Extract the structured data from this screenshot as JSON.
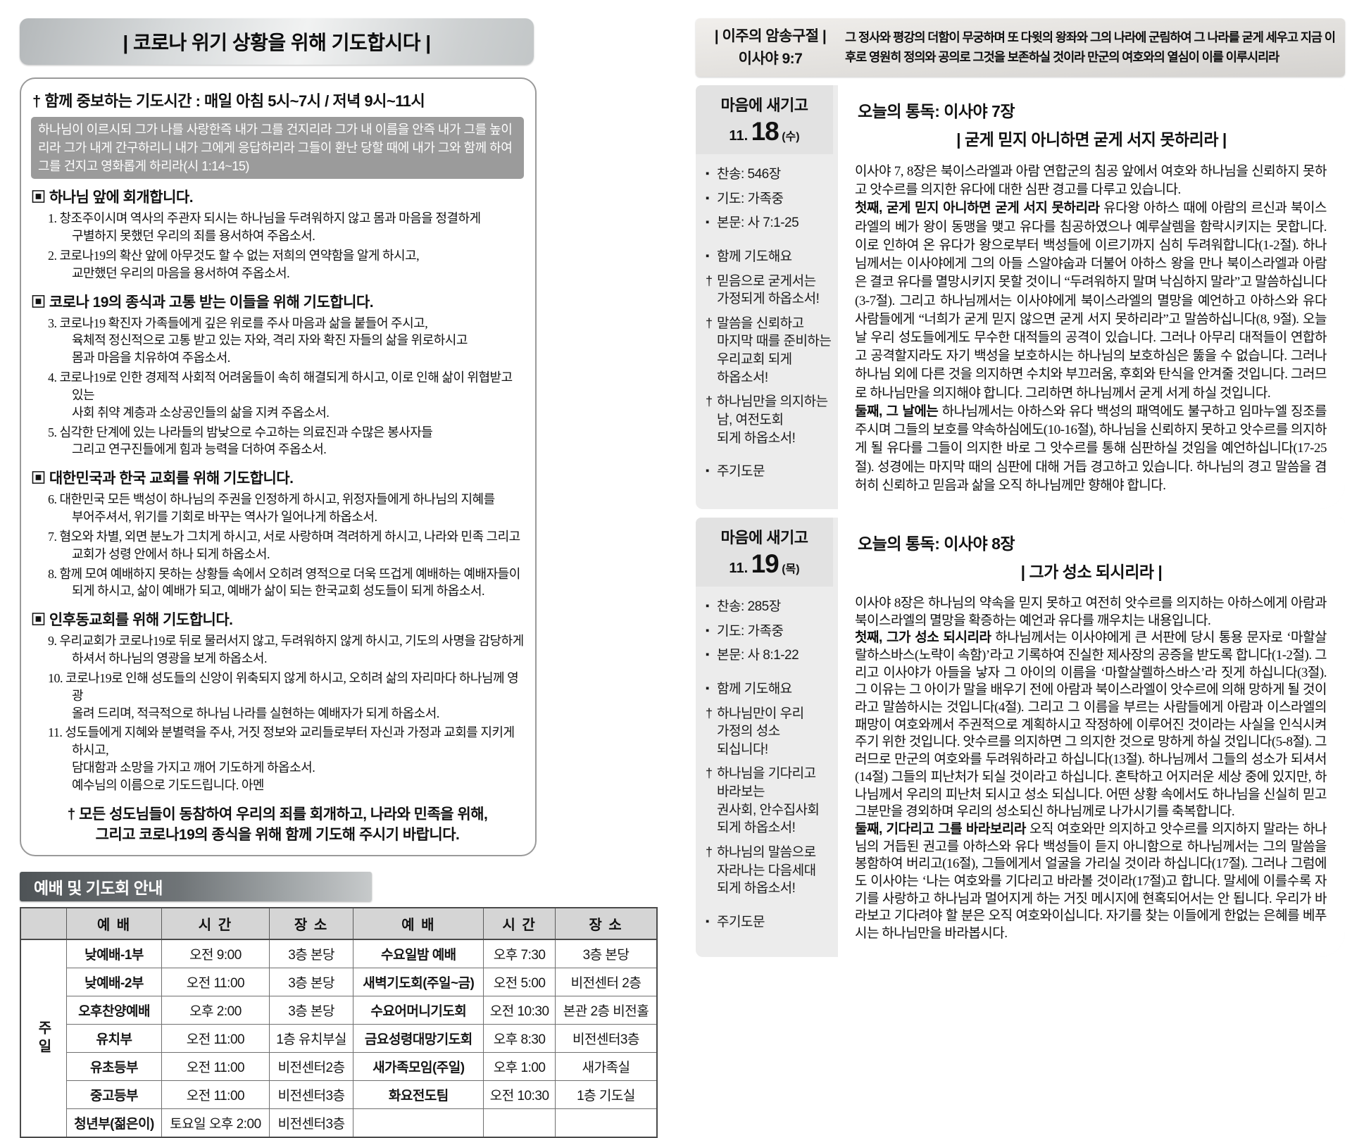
{
  "left": {
    "title": "| 코로나 위기 상황을 위해 기도합시다 |",
    "prayer_box": {
      "heading": "† 함께 중보하는 기도시간 : 매일 아침 5시~7시 / 저녁 9시~11시",
      "verse": "하나님이 이르시되 그가 나를 사랑한즉 내가 그를 건지리라 그가 내 이름을 안즉 내가 그를 높이리라 그가 내게 간구하리니 내가 그에게 응답하리라 그들이 환난 당할 때에 내가 그와 함께 하여 그를 건지고 영화롭게 하리라(시 1:14~15)",
      "sections": [
        {
          "title": "▣ 하나님 앞에 회개합니다.",
          "items": [
            "1. 창조주이시며 역사의 주관자 되시는 하나님을 두려워하지 않고 몸과 마음을 정결하게\n구별하지 못했던 우리의 죄를 용서하여 주옵소서.",
            "2. 코로나19의 확산 앞에 아무것도 할 수 없는 저희의 연약함을 알게 하시고,\n교만했던 우리의 마음을 용서하여 주옵소서."
          ]
        },
        {
          "title": "▣ 코로나 19의 종식과 고통 받는 이들을 위해 기도합니다.",
          "items": [
            "3. 코로나19 확진자 가족들에게 깊은 위로를 주사 마음과 삶을 붙들어 주시고,\n육체적 정신적으로 고통 받고 있는 자와, 격리 자와 확진 자들의 삶을 위로하시고\n몸과 마음을 치유하여 주옵소서.",
            "4. 코로나19로 인한 경제적 사회적 어려움들이 속히 해결되게 하시고, 이로 인해 삶이 위협받고 있는\n사회 취약 계층과 소상공인들의 삶을 지켜 주옵소서.",
            "5. 심각한 단계에 있는 나라들의 밤낮으로 수고하는 의료진과 수많은 봉사자들\n그리고 연구진들에게 힘과 능력을 더하여 주옵소서."
          ]
        },
        {
          "title": "▣ 대한민국과 한국 교회를 위해 기도합니다.",
          "items": [
            "6. 대한민국 모든 백성이 하나님의 주권을 인정하게 하시고, 위정자들에게 하나님의 지혜를\n부어주셔서, 위기를 기회로 바꾸는 역사가 일어나게 하옵소서.",
            "7. 혐오와 차별, 외면 분노가 그치게 하시고, 서로 사랑하며 격려하게 하시고, 나라와 민족 그리고\n교회가 성령 안에서 하나 되게 하옵소서.",
            "8. 함께 모여 예배하지 못하는 상황들 속에서 오히려 영적으로 더욱 뜨겁게 예배하는 예배자들이\n되게 하시고, 삶이 예배가 되고, 예배가 삶이 되는 한국교회 성도들이 되게 하옵소서."
          ]
        },
        {
          "title": "▣ 인후동교회를 위해 기도합니다.",
          "items": [
            "9. 우리교회가 코로나19로 뒤로 물러서지 않고, 두려워하지 않게 하시고, 기도의 사명을 감당하게\n하셔서 하나님의 영광을 보게 하옵소서.",
            "10. 코로나19로 인해 성도들의 신앙이 위축되지 않게 하시고, 오히려 삶의 자리마다 하나님께 영광\n올려 드리며, 적극적으로 하나님 나라를 실현하는 예배자가 되게 하옵소서.",
            "11. 성도들에게 지혜와 분별력을 주사, 거짓 정보와 교리들로부터 자신과 가정과 교회를 지키게 하시고,\n담대함과 소망을 가지고 깨어 기도하게 하옵소서.\n예수님의 이름으로 기도드립니다. 아멘"
          ]
        }
      ],
      "footer": "† 모든 성도님들이 동참하여 우리의 죄를 회개하고, 나라와 민족을 위해,\n그리고 코로나19의 종식을 위해 함께 기도해 주시기 바랍니다."
    },
    "schedule": {
      "banner": "예배 및 기도회 안내",
      "headers": [
        "예 배",
        "시 간",
        "장 소",
        "예 배",
        "시 간",
        "장 소"
      ],
      "row_label": "주일",
      "rows": [
        [
          "낮예배-1부",
          "오전 9:00",
          "3층 본당",
          "수요일밤 예배",
          "오후 7:30",
          "3층 본당"
        ],
        [
          "낮예배-2부",
          "오전 11:00",
          "3층 본당",
          "새벽기도회(주일~금)",
          "오전 5:00",
          "비전센터 2층"
        ],
        [
          "오후찬양예배",
          "오후 2:00",
          "3층 본당",
          "수요어머니기도회",
          "오전 10:30",
          "본관 2층 비전홀"
        ],
        [
          "유치부",
          "오전 11:00",
          "1층 유치부실",
          "금요성령대망기도회",
          "오후 8:30",
          "비전센터3층"
        ],
        [
          "유초등부",
          "오전 11:00",
          "비전센터2층",
          "새가족모임(주일)",
          "오후 1:00",
          "새가족실"
        ],
        [
          "중고등부",
          "오전 11:00",
          "비전센터3층",
          "화요전도팀",
          "오전 10:30",
          "1층 기도실"
        ],
        [
          "청년부(젊은이)",
          "토요일 오후 2:00",
          "비전센터3층",
          "",
          "",
          ""
        ]
      ]
    }
  },
  "right": {
    "memory_verse": {
      "label_line1": "| 이주의 암송구절 |",
      "label_line2": "이사야 9:7",
      "text": "그 정사와 평강의 더함이 무궁하며 또 다윗의 왕좌와 그의 나라에 군림하여 그 나라를 굳게 세우고 지금 이후로 영원히 정의와 공의로 그것을 보존하실 것이라 만군의 여호와의 열심이 이를 이루시리라"
    },
    "days": [
      {
        "box_title": "마음에 새기고",
        "date_small": "11.",
        "date_big": "18",
        "date_suffix": "(수)",
        "reading": "오늘의 통독: 이사야 7장",
        "subtitle": "| 굳게 믿지 아니하면 굳게 서지 못하리라 |",
        "sidebar": [
          {
            "m": "▪",
            "t": "찬송: 546장"
          },
          {
            "m": "▪",
            "t": "기도: 가족중"
          },
          {
            "m": "▪",
            "t": "본문: 사 7:1-25"
          },
          {
            "m": "▪",
            "t": "함께 기도해요",
            "gap": true
          },
          {
            "m": "†",
            "t": "믿음으로 굳게서는\n가정되게 하옵소서!"
          },
          {
            "m": "†",
            "t": "말씀을 신뢰하고\n마지막 때를 준비하는\n우리교회 되게\n하옵소서!"
          },
          {
            "m": "†",
            "t": "하나님만을 의지하는\n남, 여전도회\n되게 하옵소서!"
          },
          {
            "m": "▪",
            "t": "주기도문",
            "gap": true
          }
        ],
        "paragraphs": [
          {
            "bold": "",
            "text": "이사야 7, 8장은 북이스라엘과 아람 연합군의 침공 앞에서 여호와 하나님을 신뢰하지 못하고 앗수르를 의지한 유다에 대한 심판 경고를 다루고 있습니다."
          },
          {
            "bold": "첫째, 굳게 믿지 아니하면 굳게 서지 못하리라",
            "text": "유다왕 아하스 때에 아람의 르신과 북이스라엘의 베가 왕이 동맹을 맺고 유다를 침공하였으나 예루살렘을 함락시키지는 못합니다. 이로 인하여 온 유다가 왕으로부터 백성들에 이르기까지 심히 두려워합니다(1-2절). 하나님께서는 이사야에게 그의 아들 스알야숩과 더불어 아하스 왕을 만나 북이스라엘과 아람은 결코 유다를 멸망시키지 못할 것이니 “두려워하지 말며 낙심하지 말라”고 말씀하십니다(3-7절). 그리고 하나님께서는 이사야에게 북이스라엘의 멸망을 예언하고 아하스와 유다 사람들에게 “너희가 굳게 믿지 않으면 굳게 서지 못하리라”고 말씀하십니다(8, 9절). 오늘날 우리 성도들에게도 무수한 대적들의 공격이 있습니다. 그러나 아무리 대적들이 연합하고 공격할지라도 자기 백성을 보호하시는 하나님의 보호하심은 뚫을 수 없습니다. 그러나 하나님 외에 다른 것을 의지하면 수치와 부끄러움, 후회와 탄식을 안겨줄 것입니다. 그러므로 하나님만을 의지해야 합니다. 그리하면 하나님께서 굳게 서게 하실 것입니다."
          },
          {
            "bold": "둘째, 그 날에는",
            "text": "하나님께서는 아하스와 유다 백성의 패역에도 불구하고 임마누엘 징조를 주시며 그들의 보호를 약속하심에도(10-16절), 하나님을 신뢰하지 못하고 앗수르를 의지하게 될 유다를 그들이 의지한 바로 그 앗수르를 통해 심판하실 것임을 예언하십니다(17-25절). 성경에는 마지막 때의 심판에 대해 거듭 경고하고 있습니다. 하나님의 경고 말씀을 겸허히 신뢰하고 믿음과 삶을 오직 하나님께만 향해야 합니다."
          }
        ]
      },
      {
        "box_title": "마음에 새기고",
        "date_small": "11.",
        "date_big": "19",
        "date_suffix": "(목)",
        "reading": "오늘의 통독: 이사야 8장",
        "subtitle": "| 그가 성소 되시리라 |",
        "sidebar": [
          {
            "m": "▪",
            "t": "찬송: 285장"
          },
          {
            "m": "▪",
            "t": "기도: 가족중"
          },
          {
            "m": "▪",
            "t": "본문: 사 8:1-22"
          },
          {
            "m": "▪",
            "t": "함께 기도해요",
            "gap": true
          },
          {
            "m": "†",
            "t": "하나님만이 우리\n가정의 성소\n되십니다!"
          },
          {
            "m": "†",
            "t": "하나님을 기다리고\n바라보는\n권사회, 안수집사회\n되게 하옵소서!"
          },
          {
            "m": "†",
            "t": "하나님의 말씀으로\n자라나는 다음세대\n되게 하옵소서!"
          },
          {
            "m": "▪",
            "t": "주기도문",
            "gap": true
          }
        ],
        "paragraphs": [
          {
            "bold": "",
            "text": "이사야 8장은 하나님의 약속을 믿지 못하고 여전히 앗수르를 의지하는 아하스에게 아람과 북이스라엘의 멸망을 확증하는 예언과 유다를 깨우치는 내용입니다."
          },
          {
            "bold": "첫째, 그가 성소 되시리라",
            "text": "하나님께서는 이사야에게 큰 서판에 당시 통용 문자로 ‘마할살랄하스바스(노략이 속함)’라고 기록하여 진실한 제사장의 공증을 받도록 합니다(1-2절). 그리고 이사야가 아들을 낳자 그 아이의 이름을 ‘마할살렐하스바스’라 짓게 하십니다(3절). 그 이유는 그 아이가 말을 배우기 전에 아람과 북이스라엘이 앗수르에 의해 망하게 될 것이라고 말씀하시는 것입니다(4절). 그리고 그 이름을 부르는 사람들에게 아람과 이스라엘의 패망이 여호와께서 주권적으로 계획하시고 작정하에 이루어진 것이라는 사실을 인식시켜 주기 위한 것입니다. 앗수르를 의지하면 그 의지한 것으로 망하게 하실 것입니다(5-8절). 그러므로 만군의 여호와를 두려워하라고 하십니다(13절). 하나님께서 그들의 성소가 되셔서(14절) 그들의 피난처가 되실 것이라고 하십니다. 혼탁하고 어지러운 세상 중에 있지만, 하나님께서 우리의 피난처 되시고 성소 되십니다. 어떤 상황 속에서도 하나님을 신실히 믿고 그분만을 경외하며 우리의 성소되신 하나님께로 나가시기를 축복합니다."
          },
          {
            "bold": "둘째, 기다리고 그를 바라보리라",
            "text": "오직 여호와만 의지하고 앗수르를 의지하지 말라는 하나님의 거듭된 권고를 아하스와 유다 백성들이 듣지 아니함으로 하나님께서는 그의 말씀을 봉함하여 버리고(16절), 그들에게서 얼굴을 가리실 것이라 하십니다(17절). 그러나 그럼에도 이사야는 ‘나는 여호와를 기다리고 바라볼 것이라(17절)고 합니다. 말세에 이를수록 자기를 사랑하고 하나님과 멀어지게 하는 거짓 메시지에 현혹되어서는 안 됩니다. 우리가 바라보고 기다려야 할 분은 오직 여호와이십니다. 자기를 찾는 이들에게 한없는 은혜를 베푸시는 하나님만을 바라봅시다."
          }
        ]
      }
    ]
  }
}
